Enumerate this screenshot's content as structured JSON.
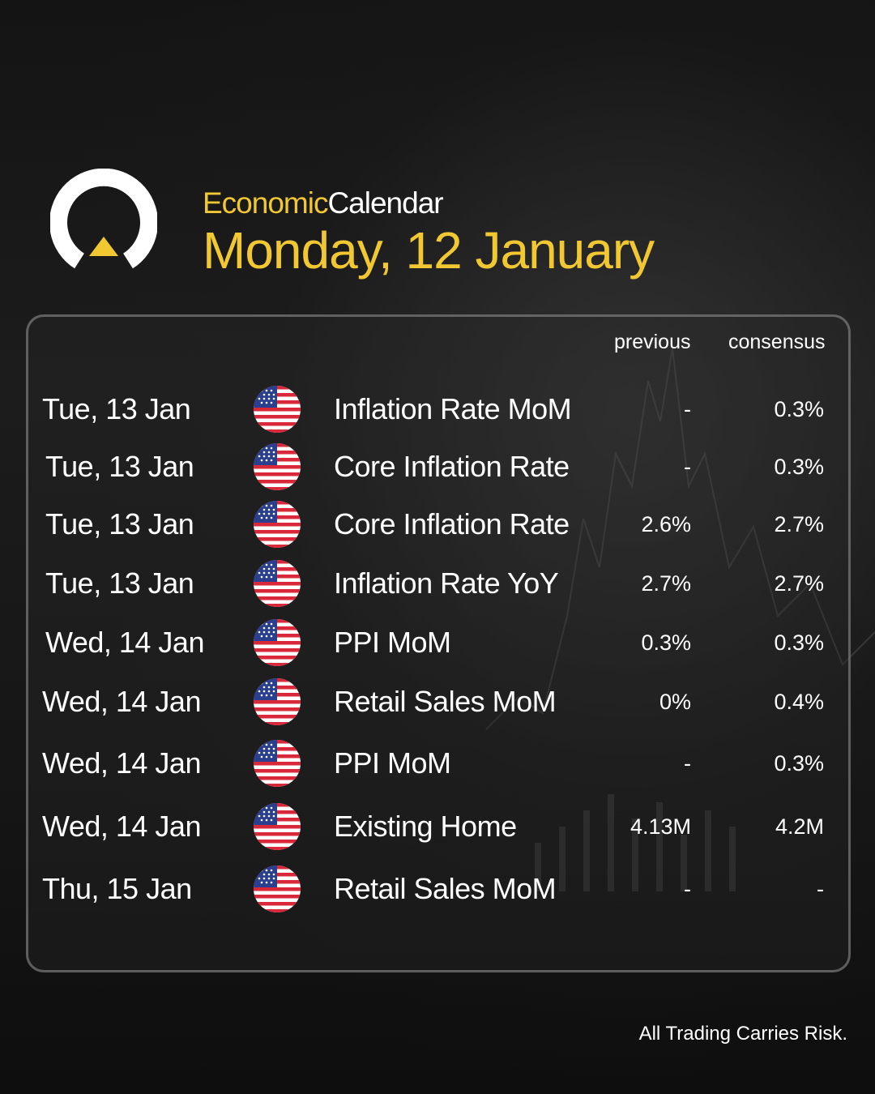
{
  "header": {
    "label_accent": "Economic",
    "label_plain": "Calendar",
    "date_title": "Monday, 12 January"
  },
  "columns": {
    "previous": "previous",
    "consensus": "consensus"
  },
  "events": [
    {
      "date": "Tue, 13 Jan",
      "flag": "us-flag-icon",
      "event": "Inflation Rate MoM",
      "previous": "-",
      "consensus": "0.3%"
    },
    {
      "date": "Tue, 13 Jan",
      "flag": "us-flag-icon",
      "event": "Core Inflation Rate",
      "previous": "-",
      "consensus": "0.3%"
    },
    {
      "date": "Tue, 13 Jan",
      "flag": "us-flag-icon",
      "event": "Core Inflation Rate",
      "previous": "2.6%",
      "consensus": "2.7%"
    },
    {
      "date": "Tue, 13 Jan",
      "flag": "us-flag-icon",
      "event": "Inflation Rate YoY",
      "previous": "2.7%",
      "consensus": "2.7%"
    },
    {
      "date": "Wed, 14 Jan",
      "flag": "us-flag-icon",
      "event": "PPI MoM",
      "previous": "0.3%",
      "consensus": "0.3%"
    },
    {
      "date": "Wed, 14 Jan",
      "flag": "us-flag-icon",
      "event": "Retail Sales MoM",
      "previous": "0%",
      "consensus": "0.4%"
    },
    {
      "date": "Wed, 14 Jan",
      "flag": "us-flag-icon",
      "event": "PPI MoM",
      "previous": "-",
      "consensus": "0.3%"
    },
    {
      "date": "Wed, 14 Jan",
      "flag": "us-flag-icon",
      "event": "Existing Home",
      "previous": "4.13M",
      "consensus": "4.2M"
    },
    {
      "date": "Thu, 15 Jan",
      "flag": "us-flag-icon",
      "event": "Retail Sales MoM",
      "previous": "-",
      "consensus": "-"
    }
  ],
  "footer": {
    "disclaimer": "All Trading Carries Risk."
  },
  "colors": {
    "accent": "#f2c832",
    "background": "#161616",
    "text": "#ffffff"
  }
}
